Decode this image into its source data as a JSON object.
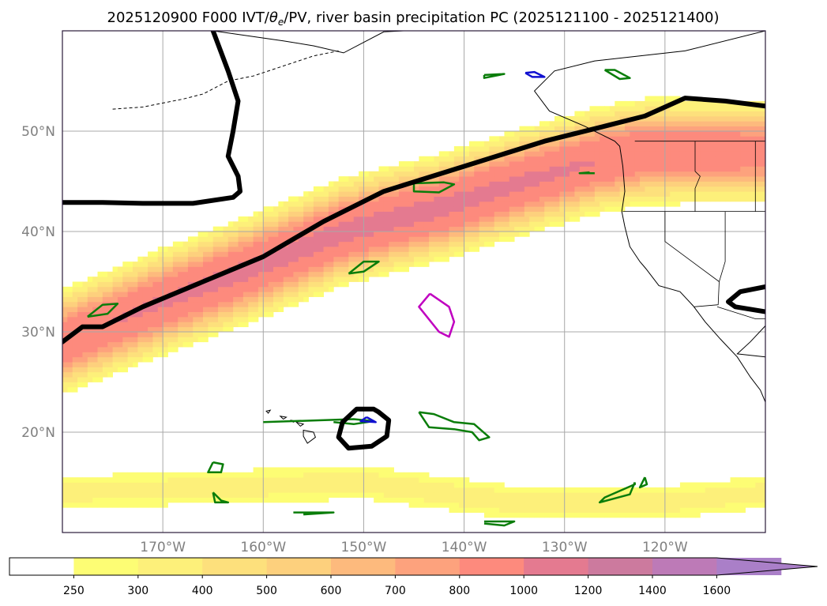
{
  "chart_data": {
    "type": "heatmap",
    "title_prefix": "2025120900 F000 IVT/",
    "title_symbol": "θ",
    "title_subscript": "e",
    "title_suffix": "/PV, river basin precipitation PC (2025121100 - 2025121400)",
    "map": {
      "projection": "PlateCarree",
      "lon_range": [
        -180,
        -110
      ],
      "lat_range": [
        10,
        60
      ],
      "grid": true
    },
    "lon_ticks": [
      {
        "value": -170,
        "label": "170°W"
      },
      {
        "value": -160,
        "label": "160°W"
      },
      {
        "value": -150,
        "label": "150°W"
      },
      {
        "value": -140,
        "label": "140°W"
      },
      {
        "value": -130,
        "label": "130°W"
      },
      {
        "value": -120,
        "label": "120°W"
      }
    ],
    "lat_ticks": [
      {
        "value": 20,
        "label": "20°N"
      },
      {
        "value": 30,
        "label": "30°N"
      },
      {
        "value": 40,
        "label": "40°N"
      },
      {
        "value": 50,
        "label": "50°N"
      }
    ],
    "colorbar": {
      "levels": [
        250,
        300,
        400,
        500,
        600,
        700,
        800,
        1000,
        1200,
        1400,
        1600
      ],
      "colors": [
        "#fdfd74",
        "#fdf07a",
        "#fde07c",
        "#fdd07d",
        "#fdba7d",
        "#fda27d",
        "#fd8a7d",
        "#e47a90",
        "#cc7a9e",
        "#bd7ab7",
        "#aa7fc8"
      ],
      "under_color": "#ffffff",
      "extend": "max"
    },
    "ivt_field": {
      "plumes": [
        {
          "name": "main",
          "axis": [
            [
              -180,
              29
            ],
            [
              -170,
              33
            ],
            [
              -162,
              36
            ],
            [
              -152,
              40
            ],
            [
              -142,
              42.5
            ],
            [
              -134,
              45
            ],
            [
              -127,
              47
            ],
            [
              -122,
              48
            ]
          ],
          "sigma_lat": 3.2,
          "sigma_lon": 30,
          "peak": 1050
        },
        {
          "name": "south",
          "axis": [
            [
              -180,
              14
            ],
            [
              -165,
              14.5
            ],
            [
              -150,
              15
            ],
            [
              -135,
              13
            ],
            [
              -120,
              13
            ],
            [
              -110,
              14
            ]
          ],
          "sigma_lat": 2.2,
          "sigma_lon": 60,
          "peak": 330
        }
      ]
    },
    "theta_e_contours": [
      {
        "points": [
          [
            -165,
            60
          ],
          [
            -163.5,
            56
          ],
          [
            -162.5,
            53
          ],
          [
            -163,
            50
          ],
          [
            -163.5,
            47.5
          ],
          [
            -162.5,
            45.5
          ],
          [
            -162.3,
            44
          ],
          [
            -163,
            43.4
          ],
          [
            -167,
            42.8
          ],
          [
            -172,
            42.8
          ],
          [
            -176,
            42.9
          ],
          [
            -180,
            42.9
          ]
        ]
      },
      {
        "points": [
          [
            -180,
            29
          ],
          [
            -178,
            30.5
          ],
          [
            -176,
            30.5
          ],
          [
            -172,
            32.5
          ],
          [
            -166,
            35
          ],
          [
            -160,
            37.5
          ],
          [
            -154,
            41
          ],
          [
            -148,
            44
          ],
          [
            -140,
            46.5
          ],
          [
            -132,
            49
          ],
          [
            -126,
            50.5
          ],
          [
            -122,
            51.5
          ],
          [
            -118,
            53.3
          ],
          [
            -114,
            53
          ],
          [
            -110,
            52.5
          ]
        ]
      },
      {
        "points": [
          [
            -110,
            34.5
          ],
          [
            -112.5,
            34
          ],
          [
            -113.7,
            33
          ],
          [
            -113,
            32.5
          ],
          [
            -110,
            32
          ]
        ]
      },
      {
        "points": [
          [
            -148.5,
            22
          ],
          [
            -147.5,
            21.2
          ],
          [
            -147.7,
            19.6
          ],
          [
            -149.2,
            18.6
          ],
          [
            -151.5,
            18.4
          ],
          [
            -152.5,
            19.5
          ],
          [
            -152.1,
            21
          ],
          [
            -150.7,
            22.3
          ],
          [
            -149,
            22.3
          ],
          [
            -148.5,
            22
          ]
        ]
      }
    ],
    "pv_contours": [
      {
        "points": [
          [
            -143.4,
            33.8
          ],
          [
            -144.5,
            32.5
          ],
          [
            -142.5,
            30
          ],
          [
            -141.5,
            29.5
          ],
          [
            -141,
            31
          ],
          [
            -141.5,
            32.5
          ],
          [
            -143.4,
            33.8
          ]
        ]
      }
    ],
    "precip_contours": [
      {
        "points": [
          [
            -149.7,
            21.5
          ],
          [
            -150.3,
            21.1
          ],
          [
            -148.8,
            21.0
          ],
          [
            -149.7,
            21.5
          ]
        ]
      },
      {
        "points": [
          [
            -133.9,
            55.8
          ],
          [
            -133.2,
            55.4
          ],
          [
            -132,
            55.4
          ],
          [
            -133.0,
            55.9
          ],
          [
            -133.9,
            55.8
          ]
        ]
      }
    ],
    "green_outlines": [
      {
        "points": [
          [
            -177.5,
            31.5
          ],
          [
            -176,
            32.7
          ],
          [
            -174.5,
            32.8
          ],
          [
            -175.5,
            31.8
          ],
          [
            -177.5,
            31.5
          ]
        ]
      },
      {
        "points": [
          [
            -145,
            44.8
          ],
          [
            -142,
            44.9
          ],
          [
            -141,
            44.7
          ],
          [
            -142.5,
            43.9
          ],
          [
            -145,
            44.0
          ],
          [
            -145,
            44.8
          ]
        ]
      },
      {
        "points": [
          [
            -151.5,
            35.8
          ],
          [
            -150,
            37
          ],
          [
            -148.5,
            37
          ],
          [
            -150,
            36
          ],
          [
            -151.5,
            35.8
          ]
        ]
      },
      {
        "points": [
          [
            -160,
            21
          ],
          [
            -151,
            21.3
          ],
          [
            -149,
            21.1
          ],
          [
            -151,
            20.8
          ],
          [
            -153,
            21.0
          ]
        ]
      },
      {
        "points": [
          [
            -144.5,
            22
          ],
          [
            -143,
            21.8
          ],
          [
            -141,
            21.0
          ],
          [
            -139.0,
            20.8
          ],
          [
            -137.5,
            19.5
          ],
          [
            -138.5,
            19.2
          ],
          [
            -139.2,
            20.0
          ],
          [
            -141,
            20.3
          ],
          [
            -143.5,
            20.5
          ],
          [
            -144.5,
            22
          ]
        ]
      },
      {
        "points": [
          [
            -165,
            17
          ],
          [
            -164,
            16.8
          ],
          [
            -164.2,
            16.0
          ],
          [
            -165.5,
            16.0
          ],
          [
            -165,
            17
          ]
        ]
      },
      {
        "points": [
          [
            -123,
            15.0
          ],
          [
            -123,
            14.8
          ],
          [
            -126,
            13.5
          ],
          [
            -126.5,
            13.0
          ],
          [
            -123.5,
            13.8
          ],
          [
            -123,
            15.0
          ]
        ]
      },
      {
        "points": [
          [
            -122,
            15.5
          ],
          [
            -121.8,
            14.8
          ],
          [
            -122.5,
            14.5
          ],
          [
            -122,
            15.5
          ]
        ]
      },
      {
        "points": [
          [
            -138,
            55.6
          ],
          [
            -136,
            55.7
          ],
          [
            -138,
            55.3
          ],
          [
            -138,
            55.6
          ]
        ]
      },
      {
        "points": [
          [
            -126,
            56.1
          ],
          [
            -124.5,
            55.2
          ],
          [
            -123.5,
            55.3
          ],
          [
            -125,
            56.1
          ],
          [
            -126,
            56.1
          ]
        ]
      },
      {
        "points": [
          [
            -127.5,
            45.9
          ],
          [
            -128.5,
            45.8
          ],
          [
            -127.0,
            45.8
          ]
        ]
      },
      {
        "points": [
          [
            -157,
            12
          ],
          [
            -155,
            12
          ],
          [
            -153,
            12
          ],
          [
            -156,
            11.8
          ]
        ]
      },
      {
        "points": [
          [
            -138,
            11.1
          ],
          [
            -135,
            11.1
          ],
          [
            -136,
            10.7
          ],
          [
            -138,
            10.9
          ]
        ]
      },
      {
        "points": [
          [
            -165.0,
            14.0
          ],
          [
            -164.2,
            13.2
          ],
          [
            -163.5,
            13.0
          ],
          [
            -164.8,
            13.0
          ],
          [
            -165.0,
            14.0
          ]
        ]
      }
    ],
    "coastline": {
      "north_america": [
        [
          -110,
          60
        ],
        [
          -118,
          58
        ],
        [
          -127,
          57
        ],
        [
          -131,
          56
        ],
        [
          -133,
          54
        ],
        [
          -131.5,
          52
        ],
        [
          -128,
          50.5
        ],
        [
          -125,
          49
        ],
        [
          -124.5,
          48.5
        ],
        [
          -124.2,
          46.5
        ],
        [
          -124.0,
          44
        ],
        [
          -124.3,
          42
        ],
        [
          -124.0,
          40.5
        ],
        [
          -123.5,
          38.5
        ],
        [
          -122.5,
          37
        ],
        [
          -121.9,
          36.3
        ],
        [
          -120.6,
          34.6
        ],
        [
          -118.5,
          34
        ],
        [
          -117.2,
          32.6
        ],
        [
          -116,
          31
        ],
        [
          -114.5,
          29.3
        ],
        [
          -112.8,
          27.5
        ],
        [
          -111.5,
          25.5
        ],
        [
          -110.5,
          24.2
        ],
        [
          -110,
          23
        ]
      ],
      "gulf_of_california": [
        [
          -110,
          30.6
        ],
        [
          -111.5,
          29
        ],
        [
          -112.8,
          27.8
        ],
        [
          -110,
          27.5
        ]
      ],
      "alaska": [
        [
          -165,
          60
        ],
        [
          -158,
          59
        ],
        [
          -155,
          58.5
        ],
        [
          -152,
          57.8
        ],
        [
          -148,
          59.9
        ],
        [
          -146,
          60
        ]
      ],
      "aleutians": [
        [
          -175,
          52.2
        ],
        [
          -172,
          52.4
        ],
        [
          -168,
          53.2
        ],
        [
          -166,
          53.7
        ],
        [
          -163.5,
          55
        ],
        [
          -161,
          55.5
        ],
        [
          -158,
          56.5
        ],
        [
          -155,
          57.5
        ],
        [
          -152.5,
          58
        ]
      ],
      "hawaii": [
        [
          [
            -159.7,
            22.1
          ],
          [
            -159.3,
            22.2
          ],
          [
            -159.5,
            21.9
          ],
          [
            -159.7,
            22.1
          ]
        ],
        [
          [
            -158.3,
            21.6
          ],
          [
            -157.7,
            21.5
          ],
          [
            -158.0,
            21.3
          ],
          [
            -158.3,
            21.6
          ]
        ],
        [
          [
            -157.3,
            21.2
          ],
          [
            -156.8,
            21.1
          ],
          [
            -157.0,
            21.0
          ],
          [
            -157.3,
            21.2
          ]
        ],
        [
          [
            -156.7,
            21.0
          ],
          [
            -156.0,
            20.8
          ],
          [
            -156.3,
            20.6
          ],
          [
            -156.7,
            21.0
          ]
        ],
        [
          [
            -156.0,
            20.2
          ],
          [
            -155.0,
            20.0
          ],
          [
            -154.8,
            19.5
          ],
          [
            -155.6,
            18.9
          ],
          [
            -156.0,
            19.6
          ],
          [
            -156.0,
            20.2
          ]
        ]
      ]
    },
    "borders": [
      [
        [
          -123,
          49
        ],
        [
          -110,
          49
        ]
      ],
      [
        [
          -124.2,
          42
        ],
        [
          -110,
          42
        ]
      ],
      [
        [
          -120,
          42
        ],
        [
          -120,
          39
        ],
        [
          -114.6,
          35
        ],
        [
          -114.7,
          32.7
        ],
        [
          -117.1,
          32.5
        ]
      ],
      [
        [
          -117,
          49
        ],
        [
          -117,
          46
        ],
        [
          -116.5,
          45.5
        ],
        [
          -117,
          44.3
        ],
        [
          -117,
          42
        ]
      ],
      [
        [
          -111,
          49
        ],
        [
          -111,
          44.5
        ],
        [
          -111,
          42
        ]
      ],
      [
        [
          -114,
          42
        ],
        [
          -114,
          37
        ],
        [
          -114.6,
          35
        ]
      ],
      [
        [
          -114.8,
          32.5
        ],
        [
          -111,
          31.3
        ],
        [
          -110,
          31.3
        ]
      ]
    ]
  }
}
